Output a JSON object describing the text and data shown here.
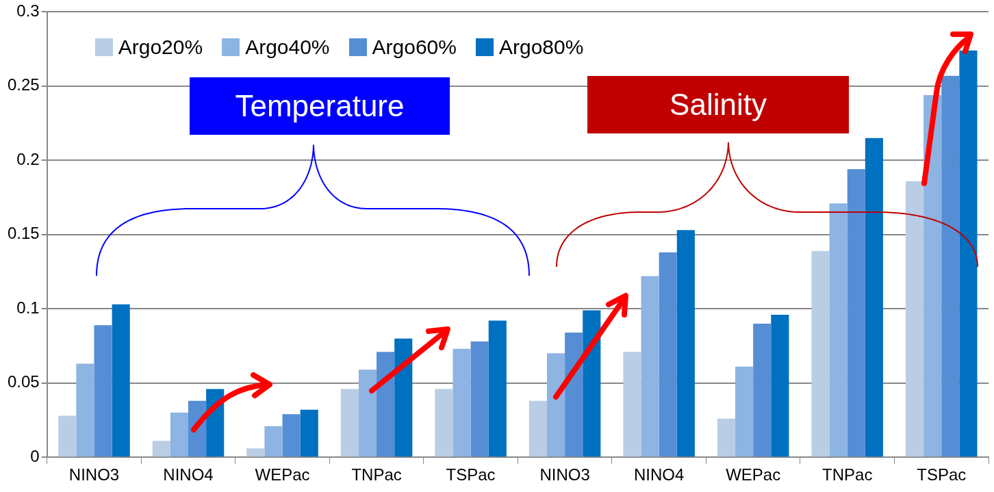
{
  "chart_data": {
    "type": "bar",
    "categories": [
      "NINO3",
      "NINO4",
      "WEPac",
      "TNPac",
      "TSPac",
      "NINO3",
      "NINO4",
      "WEPac",
      "TNPac",
      "TSPac"
    ],
    "series": [
      {
        "name": "Argo20%",
        "color": "#b9cde5",
        "values": [
          0.028,
          0.011,
          0.006,
          0.046,
          0.046,
          0.038,
          0.071,
          0.026,
          0.139,
          0.186
        ]
      },
      {
        "name": "Argo40%",
        "color": "#8db4e2",
        "values": [
          0.063,
          0.03,
          0.021,
          0.059,
          0.073,
          0.07,
          0.122,
          0.061,
          0.171,
          0.244
        ]
      },
      {
        "name": "Argo60%",
        "color": "#558ed5",
        "values": [
          0.089,
          0.038,
          0.029,
          0.071,
          0.078,
          0.084,
          0.138,
          0.09,
          0.194,
          0.257
        ]
      },
      {
        "name": "Argo80%",
        "color": "#0070c0",
        "values": [
          0.103,
          0.046,
          0.032,
          0.08,
          0.092,
          0.099,
          0.153,
          0.096,
          0.215,
          0.274
        ]
      }
    ],
    "ylim": [
      0,
      0.3
    ],
    "yticks": [
      0,
      0.05,
      0.1,
      0.15,
      0.2,
      0.25,
      0.3
    ],
    "grid": "y",
    "legend": "top left",
    "annotations": [
      "Temperature",
      "Salinity"
    ]
  }
}
